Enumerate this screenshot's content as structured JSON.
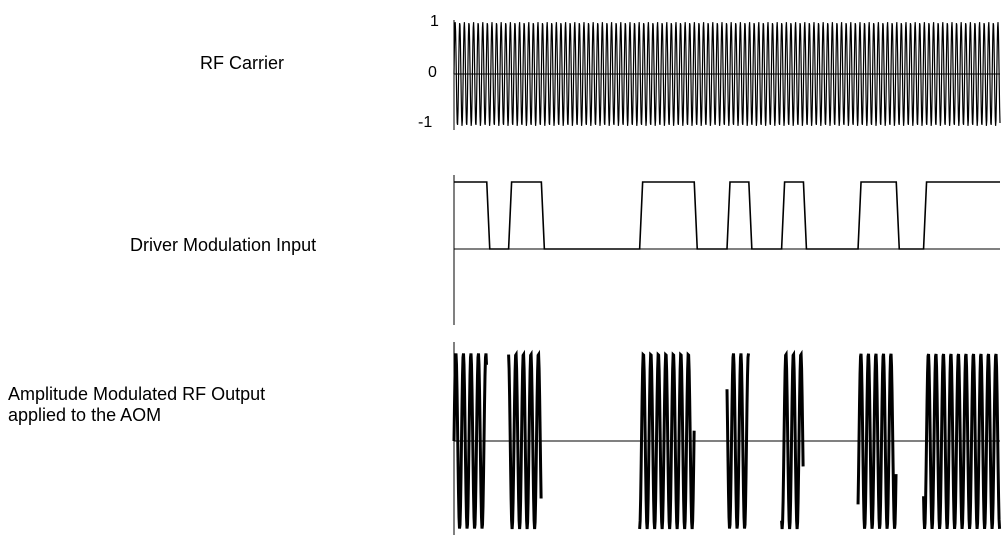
{
  "labels": {
    "carrier": "RF Carrier",
    "modulation": "Driver Modulation Input",
    "am_line1": "Amplitude Modulated RF Output",
    "am_line2": "applied to the AOM"
  },
  "carrier_axis": {
    "ticks": [
      "1",
      "0",
      "-1"
    ],
    "range": [
      -1,
      1
    ]
  },
  "modulation_signal": {
    "levels": [
      1,
      0,
      1,
      0,
      1,
      0,
      1,
      0,
      1,
      0,
      1,
      0,
      1
    ],
    "segment_fractions": [
      0.06,
      0.04,
      0.06,
      0.18,
      0.1,
      0.06,
      0.04,
      0.06,
      0.04,
      0.1,
      0.07,
      0.05,
      0.14
    ]
  },
  "colors": {
    "signal": "#000000",
    "axis": "#000000"
  }
}
